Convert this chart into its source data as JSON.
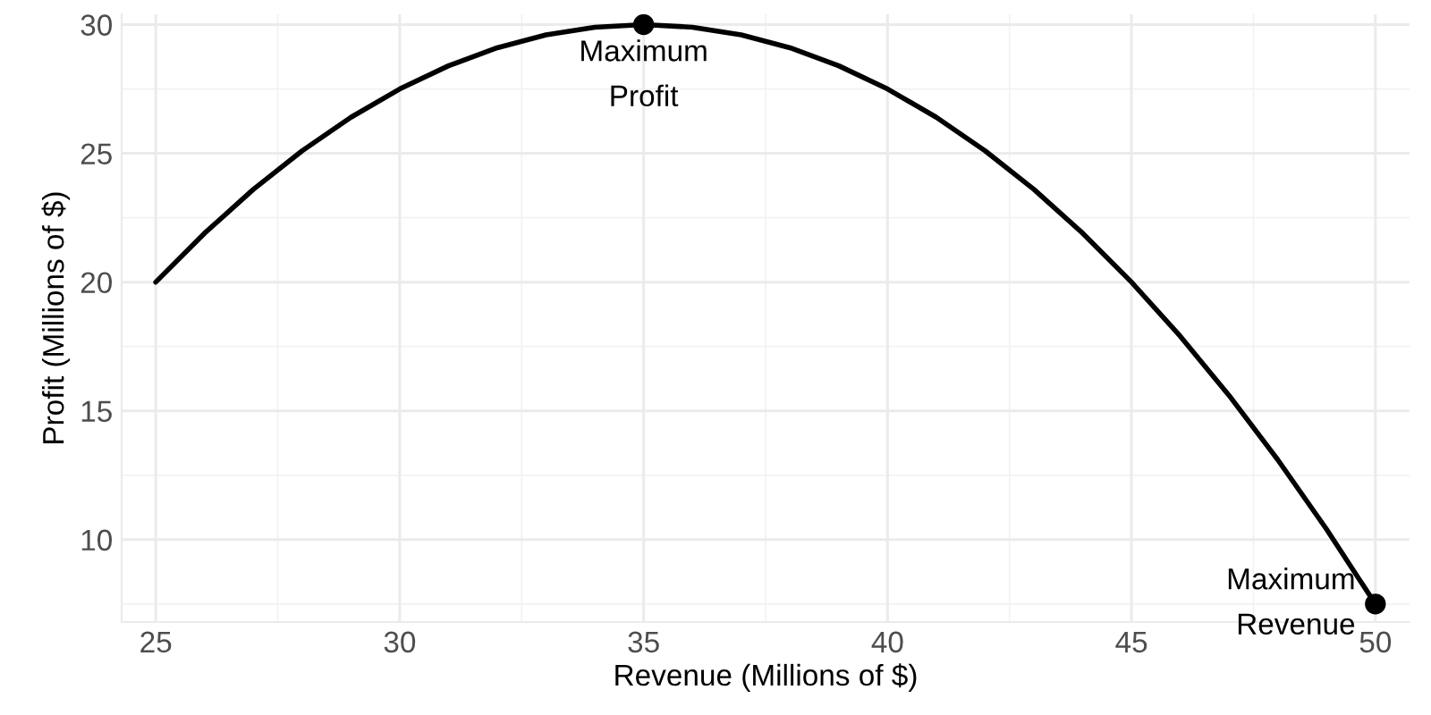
{
  "chart_data": {
    "type": "line",
    "xlabel": "Revenue (Millions of $)",
    "ylabel": "Profit (Millions of $)",
    "series": [
      {
        "color": "#000000",
        "x": [
          25,
          26,
          27,
          28,
          29,
          30,
          31,
          32,
          33,
          34,
          35,
          36,
          37,
          38,
          39,
          40,
          41,
          42,
          43,
          44,
          45,
          46,
          47,
          48,
          49,
          50
        ],
        "values": [
          20,
          21.9,
          23.6,
          25.1,
          26.4,
          27.5,
          28.4,
          29.1,
          29.6,
          29.9,
          30,
          29.9,
          29.6,
          29.1,
          28.4,
          27.5,
          26.4,
          25.1,
          23.6,
          21.9,
          20,
          17.9,
          15.6,
          13.1,
          10.4,
          7.5
        ]
      },
      {
        "type": "scatter",
        "color": "#000000",
        "marker": "circle",
        "x": [
          35,
          50
        ],
        "values": [
          30,
          7.5
        ]
      }
    ],
    "annotations": [
      {
        "text": "Maximum\nProfit",
        "x": 35,
        "y": 30
      },
      {
        "text": "Maximum\nRevenue",
        "x": 50,
        "y": 7.5
      }
    ],
    "xlim": [
      24.3,
      50.7
    ],
    "ylim": [
      6.8,
      30.4
    ],
    "xticks": [
      25,
      30,
      35,
      40,
      45,
      50
    ],
    "yticks": [
      10,
      15,
      20,
      25,
      30
    ],
    "grid": true
  }
}
